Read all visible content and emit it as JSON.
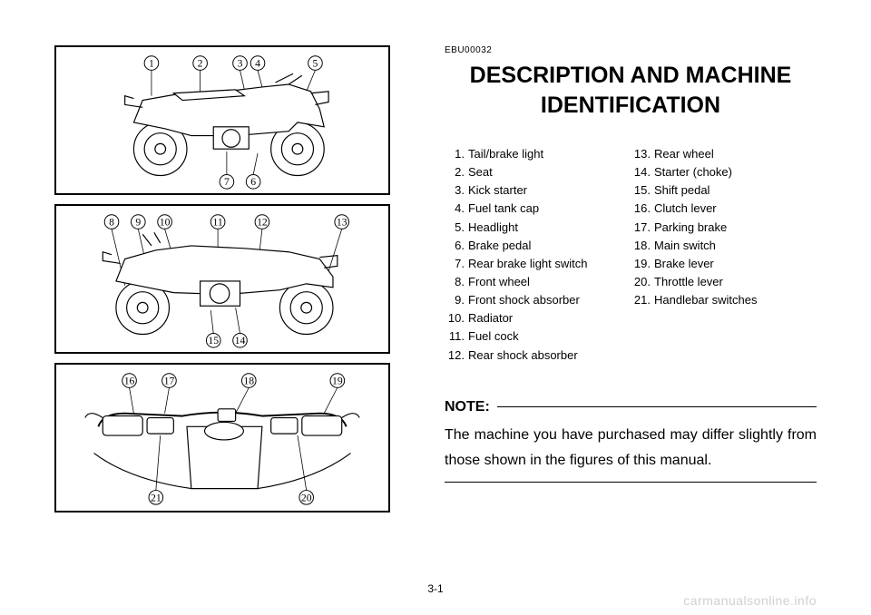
{
  "doc_code": "EBU00032",
  "title_line1": "DESCRIPTION AND MACHINE",
  "title_line2": "IDENTIFICATION",
  "parts_left": [
    {
      "n": "1.",
      "t": "Tail/brake light"
    },
    {
      "n": "2.",
      "t": "Seat"
    },
    {
      "n": "3.",
      "t": "Kick starter"
    },
    {
      "n": "4.",
      "t": "Fuel tank cap"
    },
    {
      "n": "5.",
      "t": "Headlight"
    },
    {
      "n": "6.",
      "t": "Brake pedal"
    },
    {
      "n": "7.",
      "t": "Rear brake light switch"
    },
    {
      "n": "8.",
      "t": "Front wheel"
    },
    {
      "n": "9.",
      "t": "Front shock absorber"
    },
    {
      "n": "10.",
      "t": "Radiator"
    },
    {
      "n": "11.",
      "t": "Fuel cock"
    },
    {
      "n": "12.",
      "t": "Rear shock absorber"
    }
  ],
  "parts_right": [
    {
      "n": "13.",
      "t": "Rear wheel"
    },
    {
      "n": "14.",
      "t": "Starter (choke)"
    },
    {
      "n": "15.",
      "t": "Shift pedal"
    },
    {
      "n": "16.",
      "t": "Clutch lever"
    },
    {
      "n": "17.",
      "t": "Parking brake"
    },
    {
      "n": "18.",
      "t": "Main switch"
    },
    {
      "n": "19.",
      "t": "Brake lever"
    },
    {
      "n": "20.",
      "t": "Throttle lever"
    },
    {
      "n": "21.",
      "t": "Handlebar switches"
    }
  ],
  "note_label": "NOTE:",
  "note_text": "The machine you have purchased may differ slightly from those shown in the figures of this manual.",
  "page_number": "3-1",
  "watermark": "carmanualsonline.info",
  "callouts_fig1": [
    "1",
    "2",
    "3",
    "4",
    "5",
    "6",
    "7"
  ],
  "callouts_fig2": [
    "8",
    "9",
    "10",
    "11",
    "12",
    "13",
    "14",
    "15"
  ],
  "callouts_fig3": [
    "16",
    "17",
    "18",
    "19",
    "20",
    "21"
  ]
}
